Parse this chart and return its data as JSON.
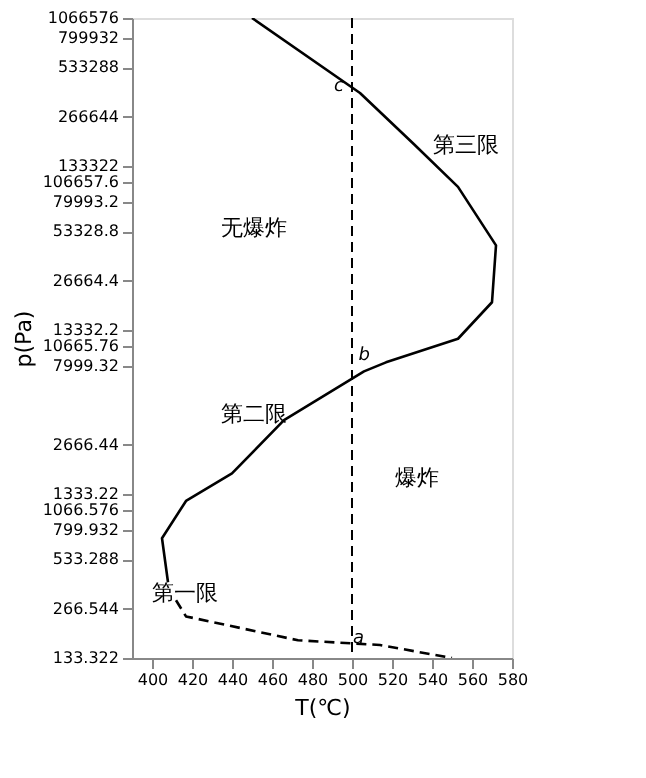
{
  "chart_data": {
    "type": "line",
    "xlabel": "T(℃)",
    "ylabel": "p(Pa)",
    "log": "y",
    "xlim": [
      390,
      580
    ],
    "xticks": [
      400,
      420,
      440,
      460,
      480,
      500,
      520,
      540,
      560,
      580
    ],
    "ylim": [
      133.322,
      1066576
    ],
    "yticks": [
      133.322,
      266.544,
      533.288,
      799.932,
      1066.576,
      1333.22,
      2666.44,
      7999.32,
      10665.76,
      13332.2,
      26664.4,
      53328.8,
      79993.2,
      106657.6,
      133322,
      266644,
      533288,
      799932,
      1066576
    ],
    "grid": false,
    "marker": "none",
    "series": [
      {
        "color": "#000000",
        "line_style": "solid",
        "x": [
          450,
          504,
          531,
          553,
          572,
          570,
          553,
          517,
          506,
          466,
          440,
          417,
          405,
          408
        ],
        "values": [
          1066576,
          372000,
          181000,
          99600,
          43800,
          19700,
          11800,
          8470,
          7460,
          3760,
          1780,
          1210,
          716,
          386
        ]
      },
      {
        "color": "#000000",
        "line_style": "dashed",
        "x": [
          412,
          417,
          473,
          514,
          550
        ],
        "values": [
          300,
          239,
          171,
          160,
          133.322
        ]
      }
    ],
    "ref_lines": [
      {
        "axis": "x",
        "value": 500,
        "line_style": "dashed",
        "color": "#000000"
      }
    ],
    "annotations": [
      "无爆炸",
      "爆炸",
      "第一限",
      "第二限",
      "第三限",
      {
        "text": "a",
        "x": 514,
        "y": 160
      },
      {
        "text": "b",
        "x": 517,
        "y": 8470
      },
      {
        "text": "c",
        "x": 504,
        "y": 372000
      }
    ]
  }
}
